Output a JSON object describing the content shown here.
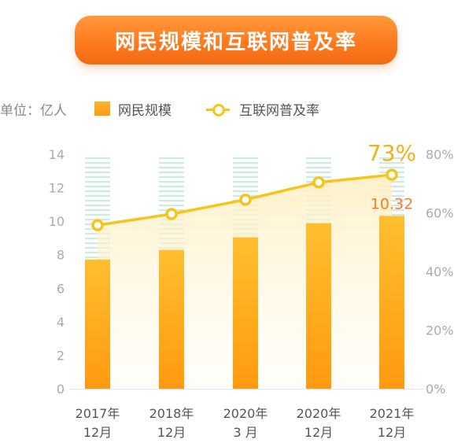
{
  "title": "网民规模和互联网普及率",
  "unit_label": "单位：亿人",
  "legend": {
    "bar_label": "网民规模",
    "line_label": "互联网普及率"
  },
  "colors": {
    "bar": "#ffa71e",
    "line": "#f5c51b",
    "highlight_pct": "#f2b21b",
    "highlight_value": "#f47c29",
    "axis_text": "#aaaaaa"
  },
  "chart_data": {
    "type": "bar",
    "categories": [
      [
        "2017年",
        "12月"
      ],
      [
        "2018年",
        "12月"
      ],
      [
        "2020年",
        "3 月"
      ],
      [
        "2020年",
        "12月"
      ],
      [
        "2021年",
        "12月"
      ]
    ],
    "series": [
      {
        "name": "网民规模",
        "type": "bar",
        "axis": "left",
        "values": [
          7.72,
          8.29,
          9.04,
          9.89,
          10.32
        ]
      },
      {
        "name": "互联网普及率",
        "type": "line",
        "axis": "right",
        "values": [
          55.8,
          59.6,
          64.5,
          70.4,
          73.0
        ]
      }
    ],
    "y_left": {
      "ticks": [
        "0",
        "2",
        "4",
        "6",
        "8",
        "10",
        "12",
        "14"
      ],
      "ylim": [
        0,
        14
      ]
    },
    "y_right": {
      "ticks": [
        "0%",
        "20%",
        "40%",
        "60%",
        "80%"
      ],
      "ylim": [
        0,
        80
      ]
    },
    "annotations": {
      "last_percent": "73%",
      "last_value": "10.32"
    },
    "grid": false
  }
}
